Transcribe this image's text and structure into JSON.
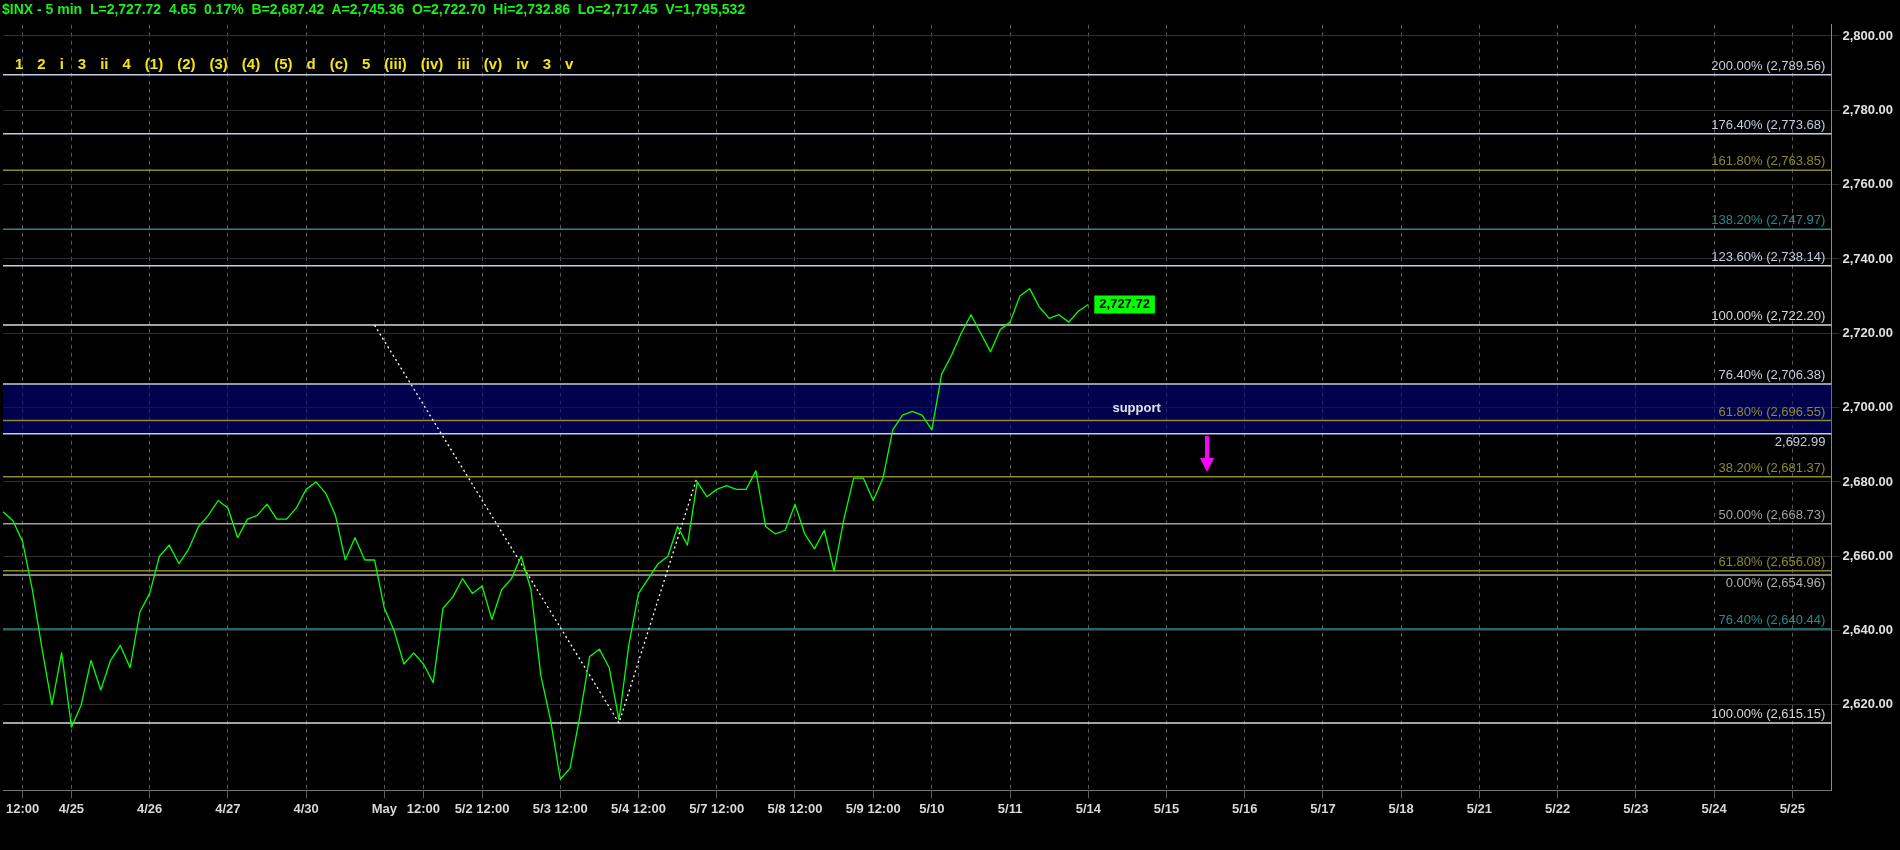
{
  "chart_data": {
    "type": "line",
    "title": "$INX - 5 min  L=2,727.72  4.65  0.17%  B=2,687.42  A=2,745.36  O=2,722.70  Hi=2,732.86  Lo=2,717.45  V=1,795,532",
    "categories": [
      null,
      null,
      "12:00",
      null,
      null,
      null,
      null,
      "4/25",
      null,
      null,
      null,
      null,
      null,
      null,
      null,
      "4/26",
      null,
      null,
      null,
      null,
      null,
      null,
      null,
      "4/27",
      null,
      null,
      null,
      null,
      null,
      null,
      null,
      "4/30",
      null,
      null,
      null,
      null,
      null,
      null,
      null,
      "May",
      null,
      null,
      null,
      "12:00",
      null,
      null,
      null,
      null,
      null,
      "5/2 12:00",
      null,
      null,
      null,
      null,
      null,
      null,
      null,
      "5/3 12:00",
      null,
      null,
      null,
      null,
      null,
      null,
      null,
      "5/4 12:00",
      null,
      null,
      null,
      null,
      null,
      null,
      null,
      "5/7 12:00",
      null,
      null,
      null,
      null,
      null,
      null,
      null,
      "5/8 12:00",
      null,
      null,
      null,
      null,
      null,
      null,
      null,
      "5/9 12:00",
      null,
      null,
      null,
      null,
      null,
      "5/10",
      null,
      null,
      null,
      null,
      null,
      null,
      null,
      "5/11",
      null,
      null,
      null,
      null,
      null,
      null,
      null,
      "5/14",
      null,
      null,
      null,
      null,
      null,
      null,
      null,
      "5/15",
      null,
      null,
      null,
      null,
      null,
      null,
      null,
      "5/16",
      null,
      null,
      null,
      null,
      null,
      null,
      null,
      "5/17",
      null,
      null,
      null,
      null,
      null,
      null,
      null,
      "5/18",
      null,
      null,
      null,
      null,
      null,
      null,
      null,
      "5/21",
      null,
      null,
      null,
      null,
      null,
      null,
      null,
      "5/22",
      null,
      null,
      null,
      null,
      null,
      null,
      null,
      "5/23",
      null,
      null,
      null,
      null,
      null,
      null,
      null,
      "5/24",
      null,
      null,
      null,
      null,
      null,
      null,
      null,
      "5/25",
      null,
      null,
      null,
      null
    ],
    "series": [
      {
        "color": "#00ff00",
        "value_labels": [
          null,
          null,
          null,
          null,
          null,
          null,
          null,
          null,
          null,
          null,
          null,
          null,
          null,
          null,
          null,
          null,
          null,
          null,
          null,
          null,
          null,
          null,
          null,
          null,
          null,
          null,
          null,
          null,
          null,
          null,
          null,
          null,
          null,
          null,
          null,
          null,
          null,
          null,
          null,
          null,
          null,
          null,
          null,
          null,
          null,
          null,
          null,
          null,
          null,
          null,
          null,
          null,
          null,
          null,
          null,
          null,
          null,
          null,
          null,
          null,
          null,
          null,
          null,
          null,
          null,
          null,
          null,
          null,
          null,
          null,
          null,
          null,
          null,
          null,
          null,
          null,
          null,
          null,
          null,
          null,
          null,
          null,
          null,
          null,
          null,
          null,
          null,
          null,
          null,
          null,
          null,
          null,
          null,
          null,
          null,
          null,
          null,
          null,
          null,
          null,
          null,
          null,
          null,
          null,
          null,
          null,
          null,
          null,
          null,
          null,
          null,
          "2,727.72",
          null,
          null,
          null,
          null,
          null,
          null,
          null,
          null,
          null,
          null,
          null,
          null,
          null,
          null,
          null,
          null,
          null,
          null,
          null,
          null,
          null,
          null,
          null,
          null,
          null,
          null,
          null,
          null,
          null,
          null,
          null,
          null,
          null,
          null,
          null,
          null,
          null,
          null,
          null,
          null,
          null,
          null,
          null,
          null,
          null,
          null,
          null,
          null,
          null,
          null,
          null,
          null,
          null,
          null,
          null,
          null,
          null,
          null,
          null,
          null,
          null,
          null,
          null,
          null,
          null,
          null,
          null,
          null,
          null,
          null,
          null,
          null,
          null,
          null,
          null,
          null
        ],
        "values": [
          2672,
          2669.6,
          2664,
          2651,
          2635,
          2620,
          2634,
          2614,
          2620,
          2632,
          2624,
          2632,
          2636,
          2630,
          2645,
          2650,
          2660,
          2663,
          2658,
          2662,
          2668,
          2671,
          2675,
          2673,
          2665,
          2670,
          2671,
          2674,
          2670,
          2670,
          2673,
          2678,
          2680,
          2677,
          2671,
          2659,
          2665,
          2659,
          2659,
          2646,
          2640,
          2631,
          2634,
          2631,
          2626,
          2646,
          2649,
          2654,
          2650,
          2652,
          2643,
          2651,
          2654,
          2660,
          2651,
          2628,
          2616,
          2600,
          2603,
          2617,
          2633,
          2635,
          2630,
          2616,
          2636,
          2650,
          2654,
          2658,
          2660,
          2668,
          2663,
          2680,
          2676,
          2678,
          2679,
          2678,
          2678,
          2683,
          2668,
          2666,
          2667,
          2674,
          2666,
          2662,
          2667,
          2656,
          2670,
          2681,
          2681,
          2675,
          2681,
          2694,
          2698,
          2699,
          2698,
          2694,
          2709,
          2714,
          2720,
          2725,
          2720,
          2715,
          2721,
          2723,
          2730,
          2732,
          2727,
          2724,
          2725,
          2723,
          2726,
          2727.72,
          null,
          null,
          null,
          null,
          null,
          null,
          null,
          null,
          null,
          null,
          null,
          null,
          null,
          null,
          null,
          null,
          null,
          null,
          null,
          null,
          null,
          null,
          null,
          null,
          null,
          null,
          null,
          null,
          null,
          null,
          null,
          null,
          null,
          null,
          null,
          null,
          null,
          null,
          null,
          null,
          null,
          null,
          null,
          null,
          null,
          null,
          null,
          null,
          null,
          null,
          null,
          null,
          null,
          null,
          null,
          null,
          null,
          null,
          null,
          null,
          null,
          null,
          null,
          null,
          null,
          null,
          null,
          null,
          null,
          null,
          null,
          null,
          null,
          null,
          null,
          null
        ]
      },
      {
        "color": "#ffffff",
        "line_style": "dotted",
        "values": [
          null,
          null,
          null,
          null,
          null,
          null,
          null,
          null,
          null,
          null,
          null,
          null,
          null,
          null,
          null,
          null,
          null,
          null,
          null,
          null,
          null,
          null,
          null,
          null,
          null,
          null,
          null,
          null,
          null,
          null,
          null,
          null,
          null,
          null,
          null,
          null,
          null,
          null,
          2722.2,
          null,
          null,
          null,
          null,
          null,
          null,
          null,
          null,
          null,
          null,
          null,
          null,
          null,
          null,
          null,
          null,
          null,
          null,
          null,
          null,
          null,
          null,
          null,
          null,
          2615.15,
          null,
          null,
          null,
          null,
          null,
          null,
          null,
          2681.37,
          null,
          null,
          null,
          null,
          null,
          null,
          null,
          null,
          null,
          null,
          null,
          null,
          null,
          null,
          null,
          null,
          null,
          null,
          null,
          null,
          null,
          null,
          null,
          null,
          null,
          null,
          null,
          null,
          null,
          null,
          null,
          null,
          null,
          null,
          null,
          null,
          null,
          null,
          null,
          null,
          null,
          null,
          null,
          null,
          null,
          null,
          null,
          null,
          null,
          null,
          null,
          null,
          null,
          null,
          null,
          null,
          null,
          null,
          null,
          null,
          null,
          null,
          null,
          null,
          null,
          null,
          null,
          null,
          null,
          null,
          null,
          null,
          null,
          null,
          null,
          null,
          null,
          null,
          null,
          null,
          null,
          null,
          null,
          null,
          null,
          null,
          null,
          null,
          null,
          null,
          null,
          null,
          null,
          null,
          null,
          null,
          null,
          null,
          null,
          null,
          null,
          null,
          null,
          null,
          null,
          null,
          null,
          null,
          null,
          null,
          null,
          null,
          null,
          null,
          null,
          null
        ]
      }
    ],
    "ylim": [
      2597,
      2803
    ],
    "yticks": [
      {
        "value": 2620,
        "label": "2,620.00"
      },
      {
        "value": 2640,
        "label": "2,640.00"
      },
      {
        "value": 2660,
        "label": "2,660.00"
      },
      {
        "value": 2680,
        "label": "2,680.00"
      },
      {
        "value": 2700,
        "label": "2,700.00"
      },
      {
        "value": 2720,
        "label": "2,720.00"
      },
      {
        "value": 2740,
        "label": "2,740.00"
      },
      {
        "value": 2760,
        "label": "2,760.00"
      },
      {
        "value": 2780,
        "label": "2,780.00"
      },
      {
        "value": 2800,
        "label": "2,800.00"
      }
    ],
    "grid": true,
    "marker": "none",
    "ref_lines": [
      {
        "axis": "y",
        "value": 2789.56,
        "label": "200.00% (2,789.56)",
        "color": "#c4cde0"
      },
      {
        "axis": "y",
        "value": 2773.68,
        "label": "176.40% (2,773.68)",
        "color": "#c4cde0"
      },
      {
        "axis": "y",
        "value": 2763.85,
        "label": "161.80% (2,763.85)",
        "color": "#8c8a30"
      },
      {
        "axis": "y",
        "value": 2747.97,
        "label": "138.20% (2,747.97)",
        "color": "#2a8a8a"
      },
      {
        "axis": "y",
        "value": 2738.14,
        "label": "123.60% (2,738.14)",
        "color": "#c4cde0"
      },
      {
        "axis": "y",
        "value": 2722.2,
        "label": "100.00% (2,722.20)",
        "color": "#d8d8d8"
      },
      {
        "axis": "y",
        "value": 2706.38,
        "label": "76.40% (2,706.38)",
        "color": "#c4cde0"
      },
      {
        "axis": "y",
        "value": 2696.55,
        "label": "61.80% (2,696.55)",
        "color": "#8c8a30"
      },
      {
        "axis": "y",
        "value": 2692.99,
        "label": "2,692.99",
        "color": "#c4cde0"
      },
      {
        "axis": "y",
        "value": 2681.37,
        "label": "38.20% (2,681.37)",
        "color": "#8c8a30"
      },
      {
        "axis": "y",
        "value": 2668.73,
        "label": "50.00% (2,668.73)",
        "color": "#a0a0a0"
      },
      {
        "axis": "y",
        "value": 2656.08,
        "label": "61.80% (2,656.08)",
        "color": "#8c8a30"
      },
      {
        "axis": "y",
        "value": 2654.96,
        "label": "0.00% (2,654.96)",
        "color": "#b0b0b0"
      },
      {
        "axis": "y",
        "value": 2640.44,
        "label": "76.40% (2,640.44)",
        "color": "#2a8a8a"
      },
      {
        "axis": "y",
        "value": 2615.15,
        "label": "100.00% (2,615.15)",
        "color": "#d8d8d8"
      }
    ],
    "bands": [
      {
        "axis": "y",
        "from": 2692.99,
        "to": 2706.38,
        "label": "support",
        "color": "#000080"
      }
    ],
    "annotations": [
      "1",
      "2",
      "i",
      "3",
      "ii",
      "4",
      "(1)",
      "(2)",
      "(3)",
      "(4)",
      "(5)",
      "d",
      "(c)",
      "5",
      "(iii)",
      "(iv)",
      "iii",
      "(v)",
      "iv",
      "3",
      "v"
    ]
  }
}
